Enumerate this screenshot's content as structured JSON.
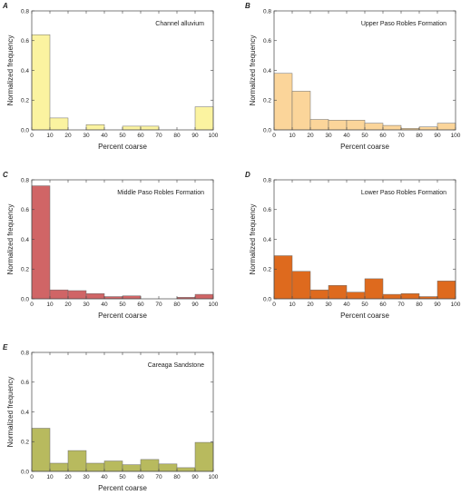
{
  "chart_data": [
    {
      "type": "bar",
      "panel": "A",
      "title": "Channel alluvium",
      "xlabel": "Percent coarse",
      "ylabel": "Normalized frequency",
      "bin_edges": [
        0,
        10,
        20,
        30,
        40,
        50,
        60,
        70,
        80,
        90,
        100
      ],
      "values": [
        0.64,
        0.08,
        0.0,
        0.035,
        0.0,
        0.025,
        0.025,
        0.0,
        0.0,
        0.155
      ],
      "xlim": [
        0,
        100
      ],
      "ylim": [
        0,
        0.8
      ],
      "xticks": [
        "0",
        "10",
        "20",
        "30",
        "40",
        "50",
        "60",
        "70",
        "80",
        "90",
        "100"
      ],
      "yticks": [
        "0.0",
        "0.2",
        "0.4",
        "0.6",
        "0.8"
      ],
      "color": "#FBF3A0"
    },
    {
      "type": "bar",
      "panel": "B",
      "title": "Upper Paso Robles Formation",
      "xlabel": "Percent coarse",
      "ylabel": "Normalized frequency",
      "bin_edges": [
        0,
        10,
        20,
        30,
        40,
        50,
        60,
        70,
        80,
        90,
        100
      ],
      "values": [
        0.38,
        0.26,
        0.07,
        0.065,
        0.065,
        0.045,
        0.03,
        0.01,
        0.02,
        0.045
      ],
      "xlim": [
        0,
        100
      ],
      "ylim": [
        0,
        0.8
      ],
      "xticks": [
        "0",
        "10",
        "20",
        "30",
        "40",
        "50",
        "60",
        "70",
        "80",
        "90",
        "100"
      ],
      "yticks": [
        "0.0",
        "0.2",
        "0.4",
        "0.6",
        "0.8"
      ],
      "color": "#FBD59A"
    },
    {
      "type": "bar",
      "panel": "C",
      "title": "Middle Paso Robles Formation",
      "xlabel": "Percent coarse",
      "ylabel": "Normalized frequency",
      "bin_edges": [
        0,
        10,
        20,
        30,
        40,
        50,
        60,
        70,
        80,
        90,
        100
      ],
      "values": [
        0.76,
        0.06,
        0.055,
        0.035,
        0.015,
        0.02,
        0.0,
        0.0,
        0.01,
        0.03
      ],
      "xlim": [
        0,
        100
      ],
      "ylim": [
        0,
        0.8
      ],
      "xticks": [
        "0",
        "10",
        "20",
        "30",
        "40",
        "50",
        "60",
        "70",
        "80",
        "90",
        "100"
      ],
      "yticks": [
        "0.0",
        "0.2",
        "0.4",
        "0.6",
        "0.8"
      ],
      "color": "#D06566"
    },
    {
      "type": "bar",
      "panel": "D",
      "title": "Lower Paso Robles Formation",
      "xlabel": "Percent coarse",
      "ylabel": "Normalized frequency",
      "bin_edges": [
        0,
        10,
        20,
        30,
        40,
        50,
        60,
        70,
        80,
        90,
        100
      ],
      "values": [
        0.29,
        0.185,
        0.06,
        0.09,
        0.045,
        0.135,
        0.03,
        0.035,
        0.015,
        0.12
      ],
      "xlim": [
        0,
        100
      ],
      "ylim": [
        0,
        0.8
      ],
      "xticks": [
        "0",
        "10",
        "20",
        "30",
        "40",
        "50",
        "60",
        "70",
        "80",
        "90",
        "100"
      ],
      "yticks": [
        "0.0",
        "0.2",
        "0.4",
        "0.6",
        "0.8"
      ],
      "color": "#DE6A1E"
    },
    {
      "type": "bar",
      "panel": "E",
      "title": "Careaga Sandstone",
      "xlabel": "Percent coarse",
      "ylabel": "Normalized frequency",
      "bin_edges": [
        0,
        10,
        20,
        30,
        40,
        50,
        60,
        70,
        80,
        90,
        100
      ],
      "values": [
        0.29,
        0.055,
        0.14,
        0.055,
        0.07,
        0.045,
        0.08,
        0.05,
        0.025,
        0.195
      ],
      "xlim": [
        0,
        100
      ],
      "ylim": [
        0,
        0.8
      ],
      "xticks": [
        "0",
        "10",
        "20",
        "30",
        "40",
        "50",
        "60",
        "70",
        "80",
        "90",
        "100"
      ],
      "yticks": [
        "0.0",
        "0.2",
        "0.4",
        "0.6",
        "0.8"
      ],
      "color": "#B8BA5E"
    }
  ]
}
